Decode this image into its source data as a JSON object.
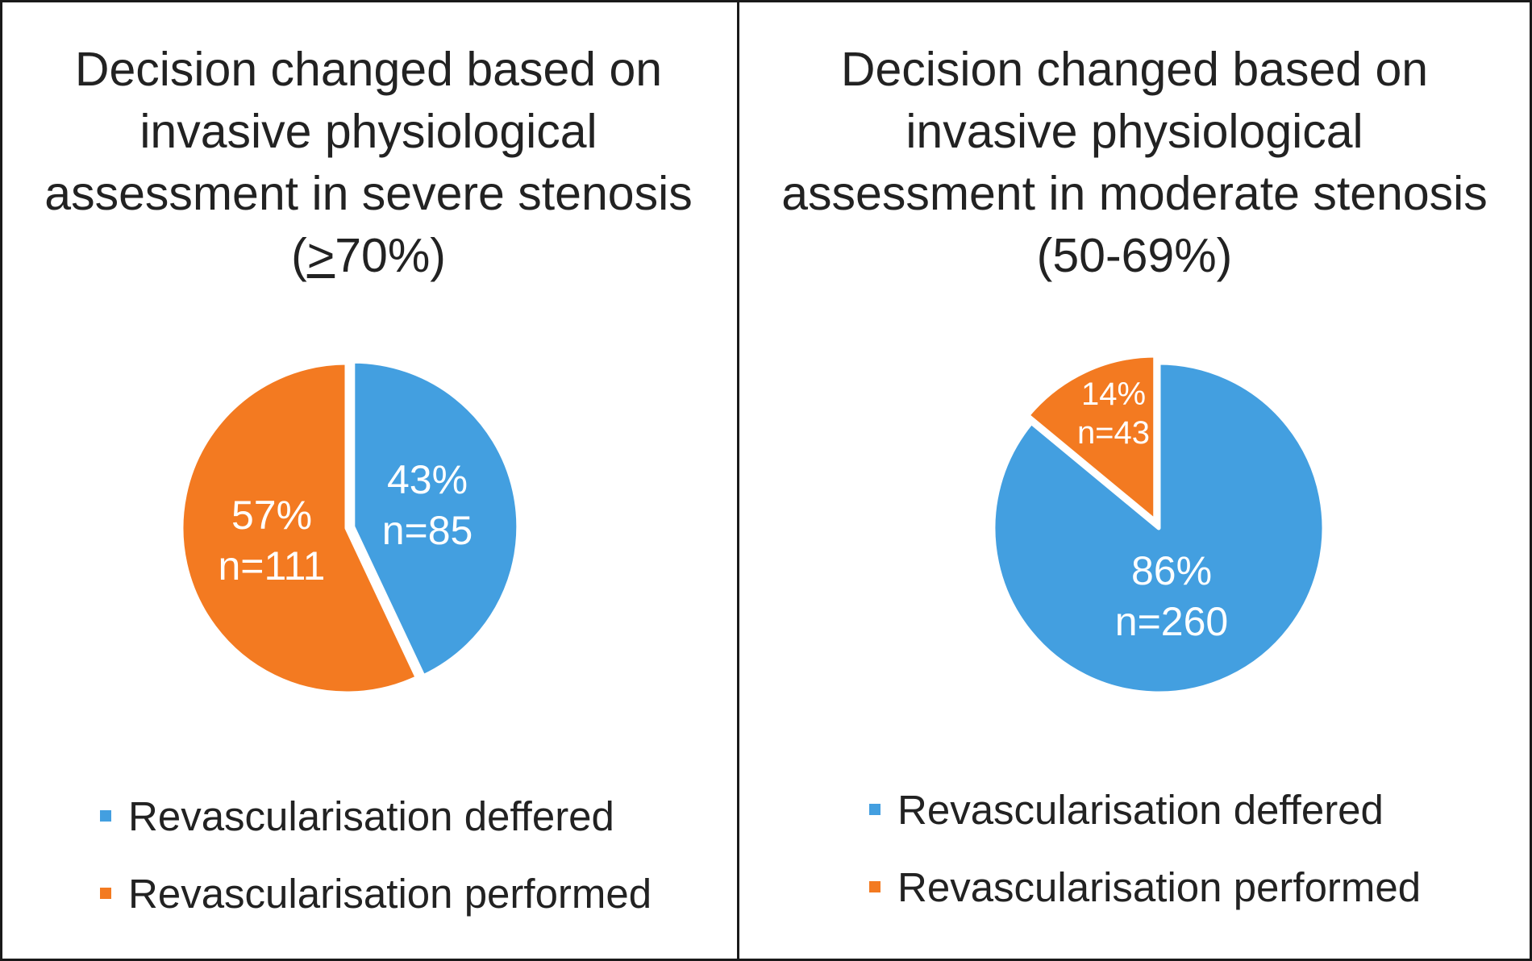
{
  "colors": {
    "deferred": "#439FE0",
    "performed": "#F37A21",
    "label": "#ffffff"
  },
  "chart_data": [
    {
      "type": "pie",
      "title_lines": [
        "Decision changed based on",
        "invasive physiological",
        "assessment in severe stenosis"
      ],
      "title_suffix": {
        "before": "(",
        "underlined": ">",
        "after": "70%)"
      },
      "slices": [
        {
          "label": "Revascularisation deffered",
          "percent": 43,
          "n": 85,
          "percent_label": "43%",
          "n_label": "n=85",
          "color": "#439FE0"
        },
        {
          "label": "Revascularisation performed",
          "percent": 57,
          "n": 111,
          "percent_label": "57%",
          "n_label": "n=111",
          "color": "#F37A21"
        }
      ],
      "legend": [
        "Revascularisation deffered",
        "Revascularisation performed"
      ]
    },
    {
      "type": "pie",
      "title_lines": [
        "Decision changed based on",
        "invasive physiological",
        "assessment in moderate stenosis",
        "(50-69%)"
      ],
      "slices": [
        {
          "label": "Revascularisation deffered",
          "percent": 86,
          "n": 260,
          "percent_label": "86%",
          "n_label": "n=260",
          "color": "#439FE0"
        },
        {
          "label": "Revascularisation performed",
          "percent": 14,
          "n": 43,
          "percent_label": "14%",
          "n_label": "n=43",
          "color": "#F37A21"
        }
      ],
      "legend": [
        "Revascularisation deffered",
        "Revascularisation performed"
      ]
    }
  ]
}
